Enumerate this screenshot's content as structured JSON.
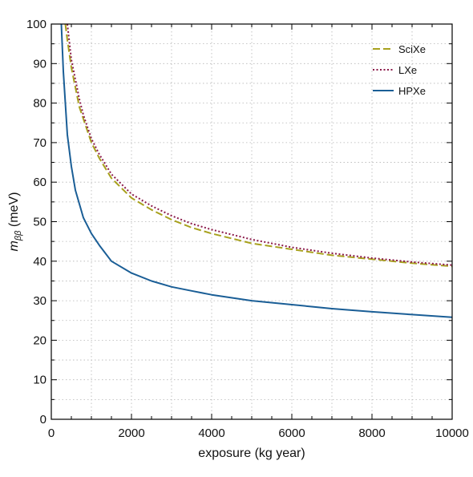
{
  "chart_data": {
    "type": "line",
    "title": "",
    "xlabel": "exposure (kg year)",
    "ylabel": "m_ββ (meV)",
    "ylabel_main": "m",
    "ylabel_sub": "ββ",
    "ylabel_unit": " (meV)",
    "xlim": [
      0,
      10000
    ],
    "ylim": [
      0,
      100
    ],
    "xticks": [
      0,
      2000,
      4000,
      6000,
      8000,
      10000
    ],
    "yticks": [
      0,
      10,
      20,
      30,
      40,
      50,
      60,
      70,
      80,
      90,
      100
    ],
    "grid": true,
    "legend_position": "top-right",
    "series": [
      {
        "name": "SciXe",
        "style": "dashed",
        "color": "#a8a11e",
        "x": [
          350,
          400,
          500,
          600,
          700,
          800,
          1000,
          1200,
          1500,
          2000,
          2500,
          3000,
          3500,
          4000,
          5000,
          6000,
          7000,
          8000,
          9000,
          10000
        ],
        "y": [
          100,
          96,
          89,
          84,
          79,
          76,
          70,
          66,
          61,
          56,
          53,
          50.5,
          48.5,
          47,
          44.5,
          43,
          41.5,
          40.5,
          39.5,
          38.7
        ]
      },
      {
        "name": "LXe",
        "style": "dotted",
        "color": "#8b1a4a",
        "x": [
          400,
          500,
          600,
          700,
          800,
          1000,
          1200,
          1500,
          2000,
          2500,
          3000,
          3500,
          4000,
          5000,
          6000,
          7000,
          8000,
          9000,
          10000
        ],
        "y": [
          100,
          91,
          86,
          81,
          77,
          71,
          67,
          62,
          57,
          54,
          51.5,
          49.5,
          48,
          45.5,
          43.5,
          42,
          40.8,
          39.8,
          39
        ]
      },
      {
        "name": "HPXe",
        "style": "solid",
        "color": "#1a5e96",
        "x": [
          250,
          300,
          400,
          500,
          600,
          800,
          1000,
          1200,
          1500,
          2000,
          2500,
          3000,
          3500,
          4000,
          5000,
          6000,
          7000,
          8000,
          9000,
          10000
        ],
        "y": [
          100,
          88,
          72,
          64,
          58,
          51,
          47,
          44,
          40,
          37,
          35,
          33.5,
          32.5,
          31.5,
          30,
          29,
          28,
          27.2,
          26.5,
          25.8
        ]
      }
    ]
  }
}
